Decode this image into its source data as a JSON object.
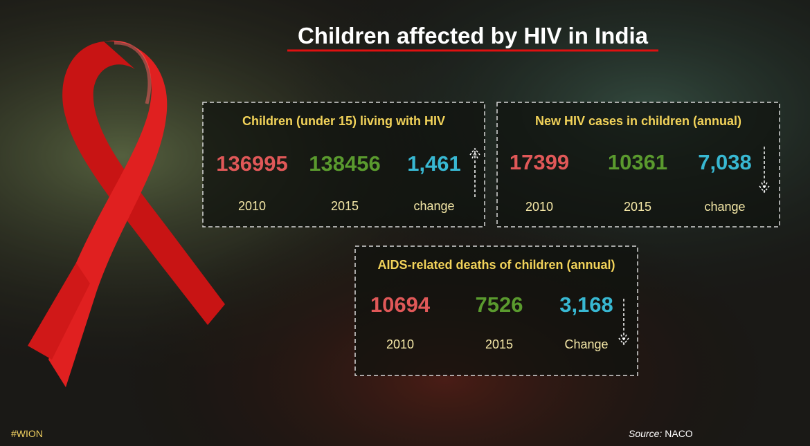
{
  "header": {
    "title": "Children affected by HIV in India"
  },
  "panels": [
    {
      "heading": "Children (under 15) living with HIV",
      "values": [
        "136995",
        "138456",
        "1,461"
      ],
      "labels": [
        "2010",
        "2015",
        "change"
      ]
    },
    {
      "heading": "New HIV cases in children (annual)",
      "values": [
        "17399",
        "10361",
        "7,038"
      ],
      "labels": [
        "2010",
        "2015",
        "change"
      ]
    },
    {
      "heading": "AIDS-related deaths of children (annual)",
      "values": [
        "10694",
        "7526",
        "3,168"
      ],
      "labels": [
        "2010",
        "2015",
        "Change"
      ]
    }
  ],
  "footer": {
    "tag": "#WION",
    "source_label": "Source:",
    "source": "NACO"
  }
}
